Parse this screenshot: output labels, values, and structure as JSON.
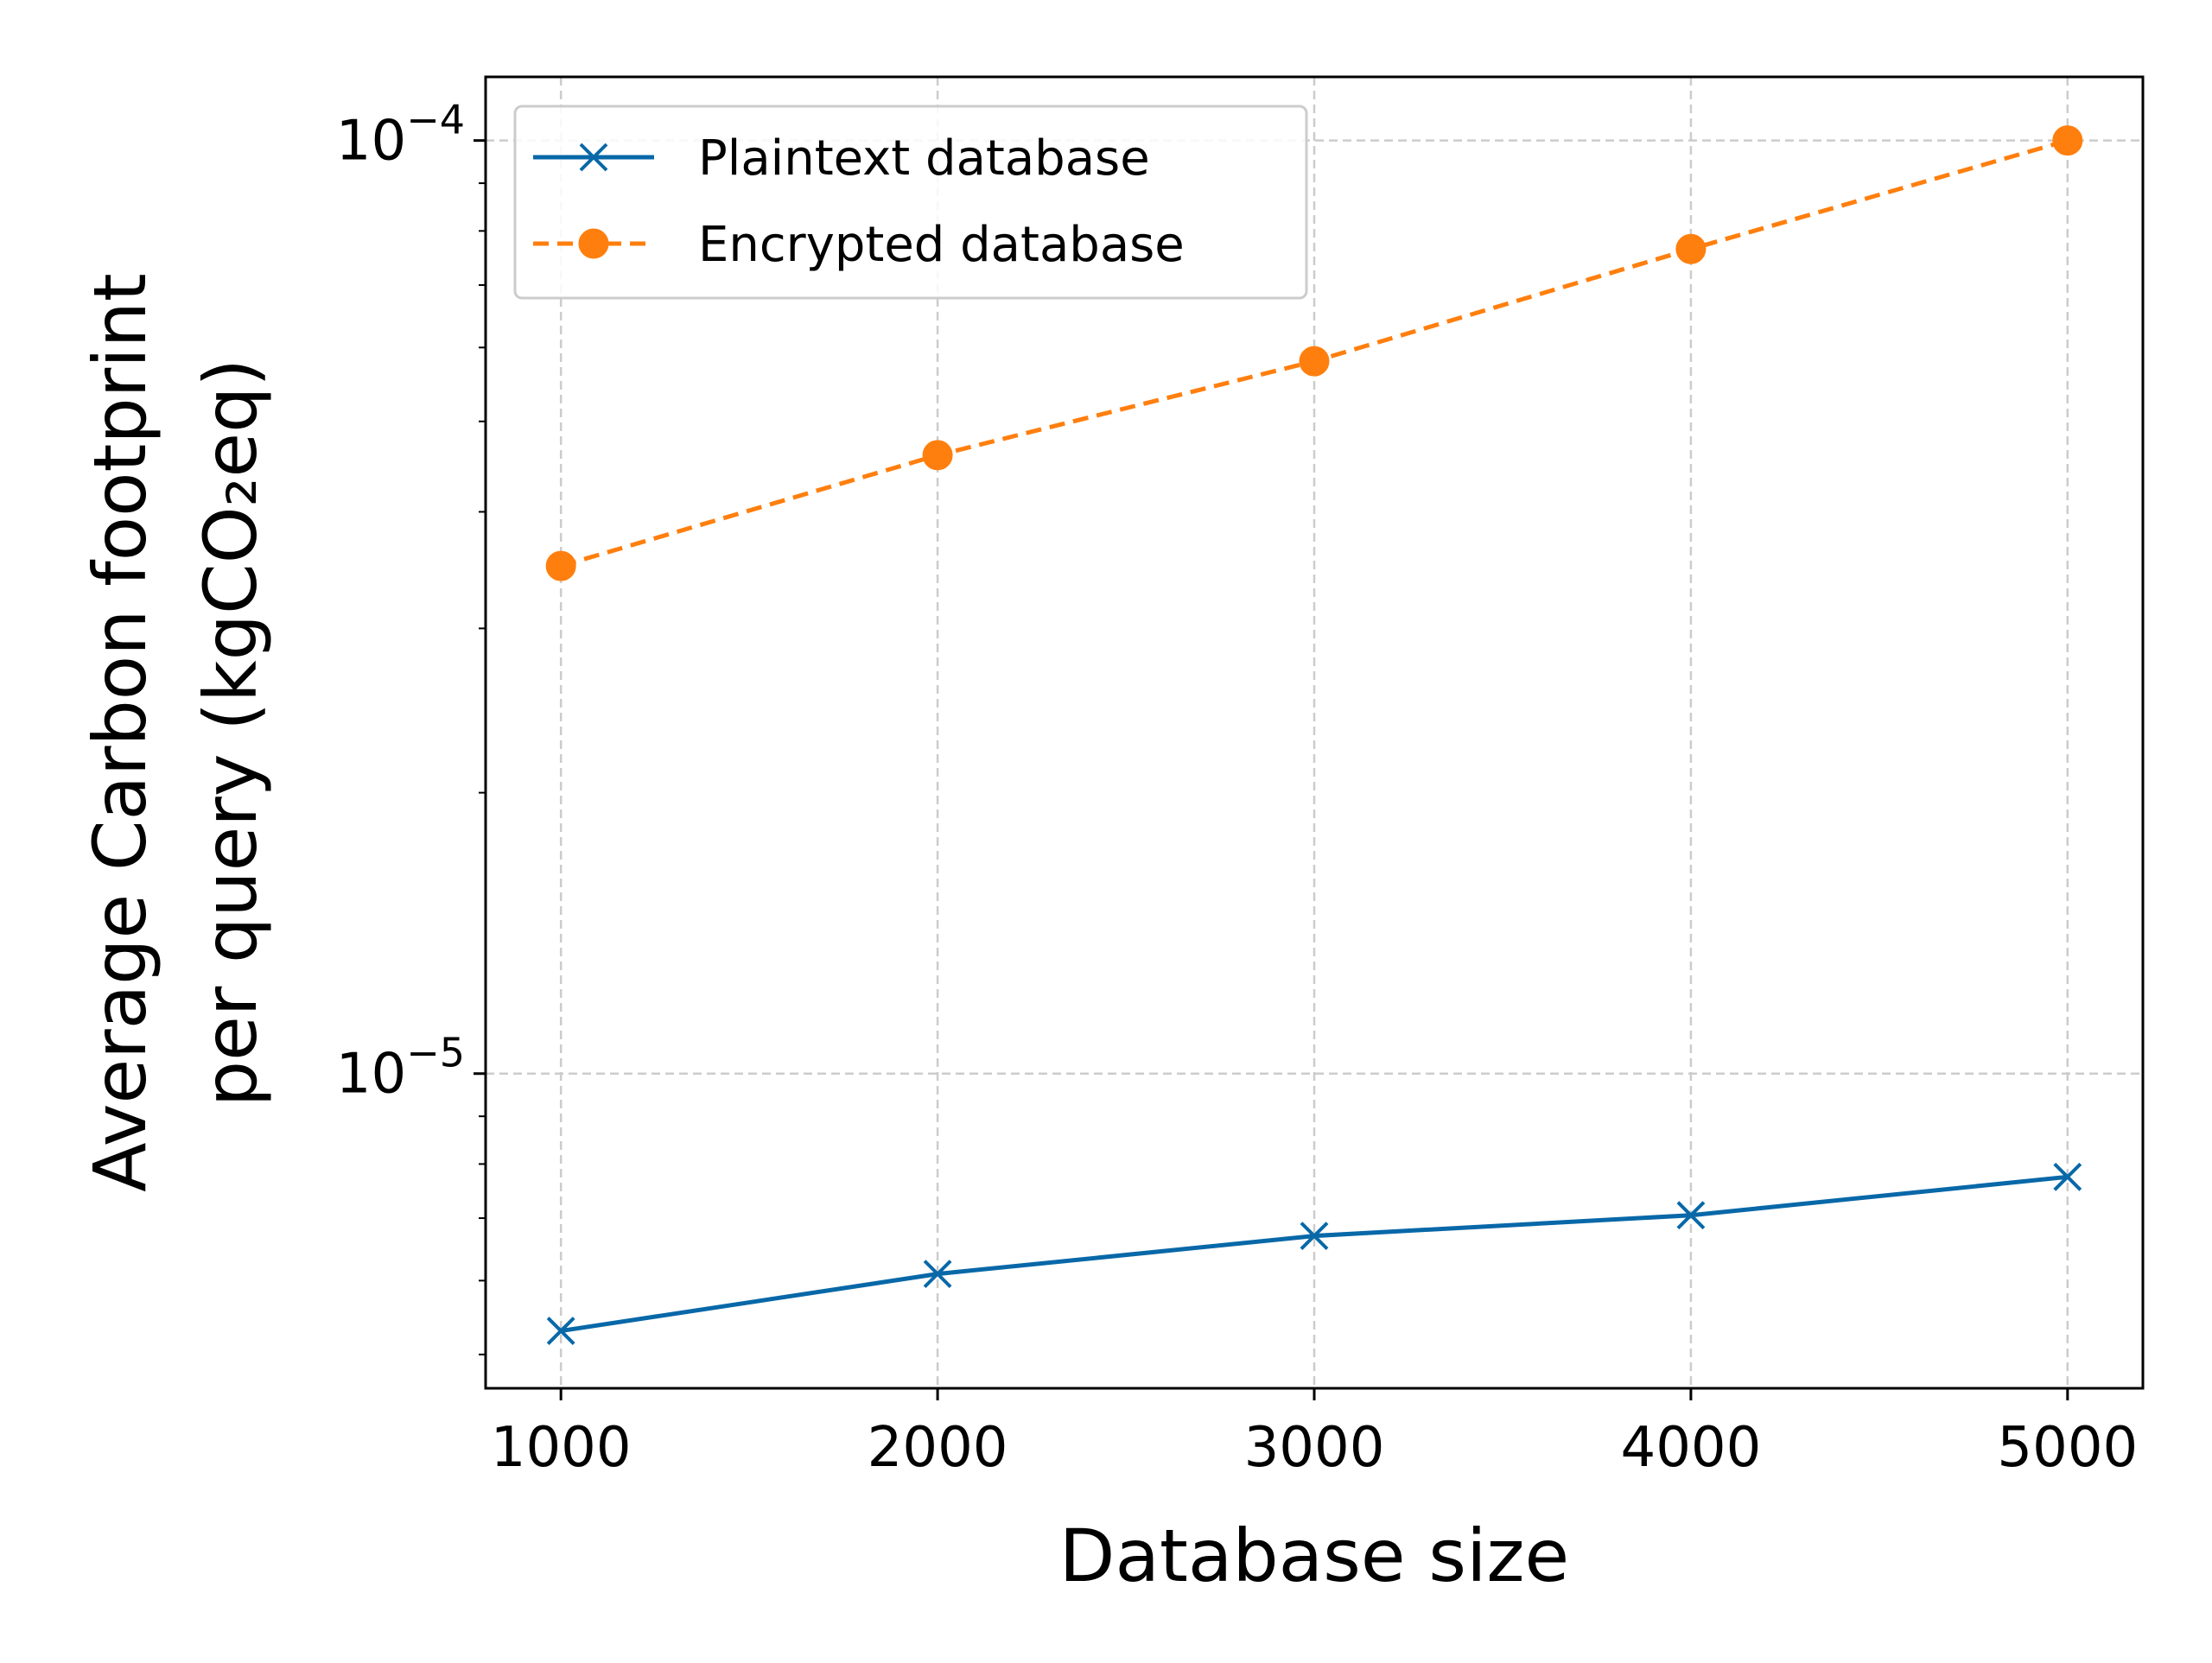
{
  "chart_data": {
    "type": "line",
    "title": "",
    "xlabel": "Database size",
    "ylabel_lines": [
      "Average Carbon footprint",
      "per query (kgCO₂eq)"
    ],
    "yscale": "log",
    "x": [
      1000,
      2000,
      3000,
      4000,
      5000
    ],
    "xlim": [
      800,
      5200
    ],
    "ylim": [
      4.6e-06,
      0.000117
    ],
    "x_ticks": [
      "1000",
      "2000",
      "3000",
      "4000",
      "5000"
    ],
    "y_major_ticks": [
      {
        "value": 1e-05,
        "base": "10",
        "exp": "−5"
      },
      {
        "value": 0.0001,
        "base": "10",
        "exp": "−4"
      }
    ],
    "grid": true,
    "legend_position": "top-left",
    "series": [
      {
        "name": "Plaintext database",
        "values": [
          5.3e-06,
          6.1e-06,
          6.7e-06,
          7.05e-06,
          7.75e-06
        ],
        "color": "#0868a8",
        "line_style": "solid",
        "marker": "x"
      },
      {
        "name": "Encrypted database",
        "values": [
          3.5e-05,
          4.6e-05,
          5.8e-05,
          7.65e-05,
          0.0001
        ],
        "color": "#ff7f0e",
        "line_style": "dashed",
        "marker": "circle"
      }
    ]
  }
}
